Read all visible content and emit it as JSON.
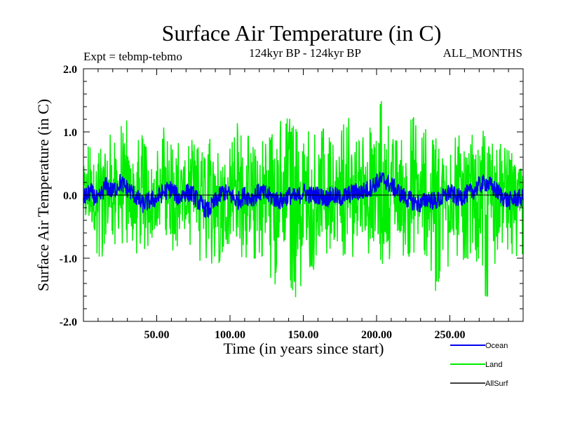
{
  "chart_data": {
    "type": "line",
    "title": "Surface Air Temperature (in C)",
    "subtitle": "124kyr BP - 124kyr BP",
    "left_note": "Expt = tebmp-tebmo",
    "right_note": "ALL_MONTHS",
    "xlabel": "Time (in years since start)",
    "ylabel": "Surface Air Temperature (in C)",
    "xlim": [
      0,
      300
    ],
    "ylim": [
      -2.0,
      2.0
    ],
    "xticks": [
      50,
      100,
      150,
      200,
      250
    ],
    "xtick_labels": [
      "50.00",
      "100.00",
      "150.00",
      "200.00",
      "250.00"
    ],
    "yticks": [
      -2.0,
      -1.0,
      0.0,
      1.0,
      2.0
    ],
    "ytick_labels": [
      "-2.0",
      "-1.0",
      "0.0",
      "1.0",
      "2.0"
    ],
    "legend_position": "bottom-right, outside plot",
    "series": [
      {
        "name": "Land",
        "color": "#00ee00",
        "x": [
          0,
          5,
          10,
          15,
          20,
          25,
          28,
          30,
          35,
          40,
          45,
          50,
          55,
          60,
          65,
          70,
          75,
          80,
          85,
          90,
          95,
          100,
          105,
          110,
          115,
          120,
          125,
          130,
          135,
          140,
          145,
          150,
          155,
          160,
          165,
          170,
          175,
          180,
          185,
          190,
          195,
          200,
          205,
          210,
          215,
          220,
          225,
          230,
          235,
          240,
          245,
          250,
          255,
          260,
          265,
          270,
          275,
          280,
          285,
          290,
          295,
          300
        ],
        "upper": [
          0.6,
          0.9,
          0.7,
          1.1,
          1.0,
          1.0,
          1.45,
          1.2,
          0.9,
          1.0,
          0.8,
          0.7,
          1.1,
          0.9,
          1.0,
          0.8,
          0.9,
          0.7,
          0.8,
          1.3,
          1.0,
          0.9,
          1.2,
          1.1,
          0.8,
          0.8,
          1.0,
          1.1,
          1.2,
          1.3,
          1.1,
          1.0,
          1.1,
          0.9,
          1.2,
          1.0,
          1.1,
          1.3,
          1.2,
          0.9,
          1.2,
          1.55,
          1.5,
          0.9,
          1.0,
          1.0,
          1.3,
          0.9,
          1.2,
          1.0,
          0.9,
          0.8,
          1.0,
          1.0,
          1.0,
          1.2,
          0.9,
          1.0,
          0.8,
          0.8,
          0.5,
          0.4
        ],
        "lower": [
          -0.9,
          -0.7,
          -1.1,
          -0.9,
          -0.8,
          -0.8,
          -1.0,
          -0.8,
          -0.9,
          -1.0,
          -0.8,
          -0.6,
          -0.9,
          -1.1,
          -0.8,
          -0.9,
          -1.0,
          -1.2,
          -1.3,
          -1.2,
          -1.0,
          -0.8,
          -1.1,
          -1.0,
          -1.1,
          -1.0,
          -1.2,
          -1.5,
          -1.1,
          -1.6,
          -1.8,
          -1.3,
          -1.2,
          -1.2,
          -1.0,
          -1.1,
          -1.3,
          -1.0,
          -1.4,
          -0.9,
          -1.0,
          -1.0,
          -1.2,
          -1.0,
          -0.9,
          -1.0,
          -1.2,
          -1.0,
          -1.0,
          -1.7,
          -1.1,
          -1.3,
          -1.0,
          -1.2,
          -1.0,
          -1.1,
          -1.75,
          -1.3,
          -1.0,
          -0.9,
          -1.1,
          -1.0
        ]
      },
      {
        "name": "Ocean",
        "color": "#0000ee",
        "x": [
          0,
          5,
          10,
          15,
          20,
          25,
          30,
          35,
          40,
          45,
          50,
          55,
          60,
          65,
          70,
          75,
          80,
          85,
          90,
          95,
          100,
          105,
          110,
          115,
          120,
          125,
          130,
          135,
          140,
          145,
          150,
          155,
          160,
          165,
          170,
          175,
          180,
          185,
          190,
          195,
          200,
          205,
          210,
          215,
          220,
          225,
          230,
          235,
          240,
          245,
          250,
          255,
          260,
          265,
          270,
          275,
          280,
          285,
          290,
          295,
          300
        ],
        "values": [
          -0.05,
          0.05,
          -0.1,
          0.15,
          0.05,
          0.2,
          0.1,
          0.0,
          -0.15,
          -0.1,
          -0.05,
          0.05,
          0.1,
          -0.05,
          0.05,
          0.0,
          -0.15,
          -0.25,
          -0.1,
          0.05,
          0.0,
          -0.1,
          0.0,
          -0.05,
          0.05,
          0.0,
          -0.05,
          -0.1,
          0.0,
          -0.05,
          0.05,
          0.0,
          0.0,
          -0.05,
          0.0,
          -0.05,
          0.0,
          0.05,
          0.05,
          0.1,
          0.2,
          0.25,
          0.15,
          0.05,
          -0.05,
          -0.1,
          -0.15,
          -0.05,
          -0.1,
          -0.05,
          0.05,
          -0.05,
          0.0,
          0.05,
          0.15,
          0.2,
          0.1,
          0.0,
          -0.1,
          -0.05,
          -0.05
        ],
        "noise": 0.15
      },
      {
        "name": "AllSurf",
        "color": "#000000",
        "x": [
          0,
          300
        ],
        "values": [
          0.0,
          0.0
        ]
      }
    ]
  }
}
